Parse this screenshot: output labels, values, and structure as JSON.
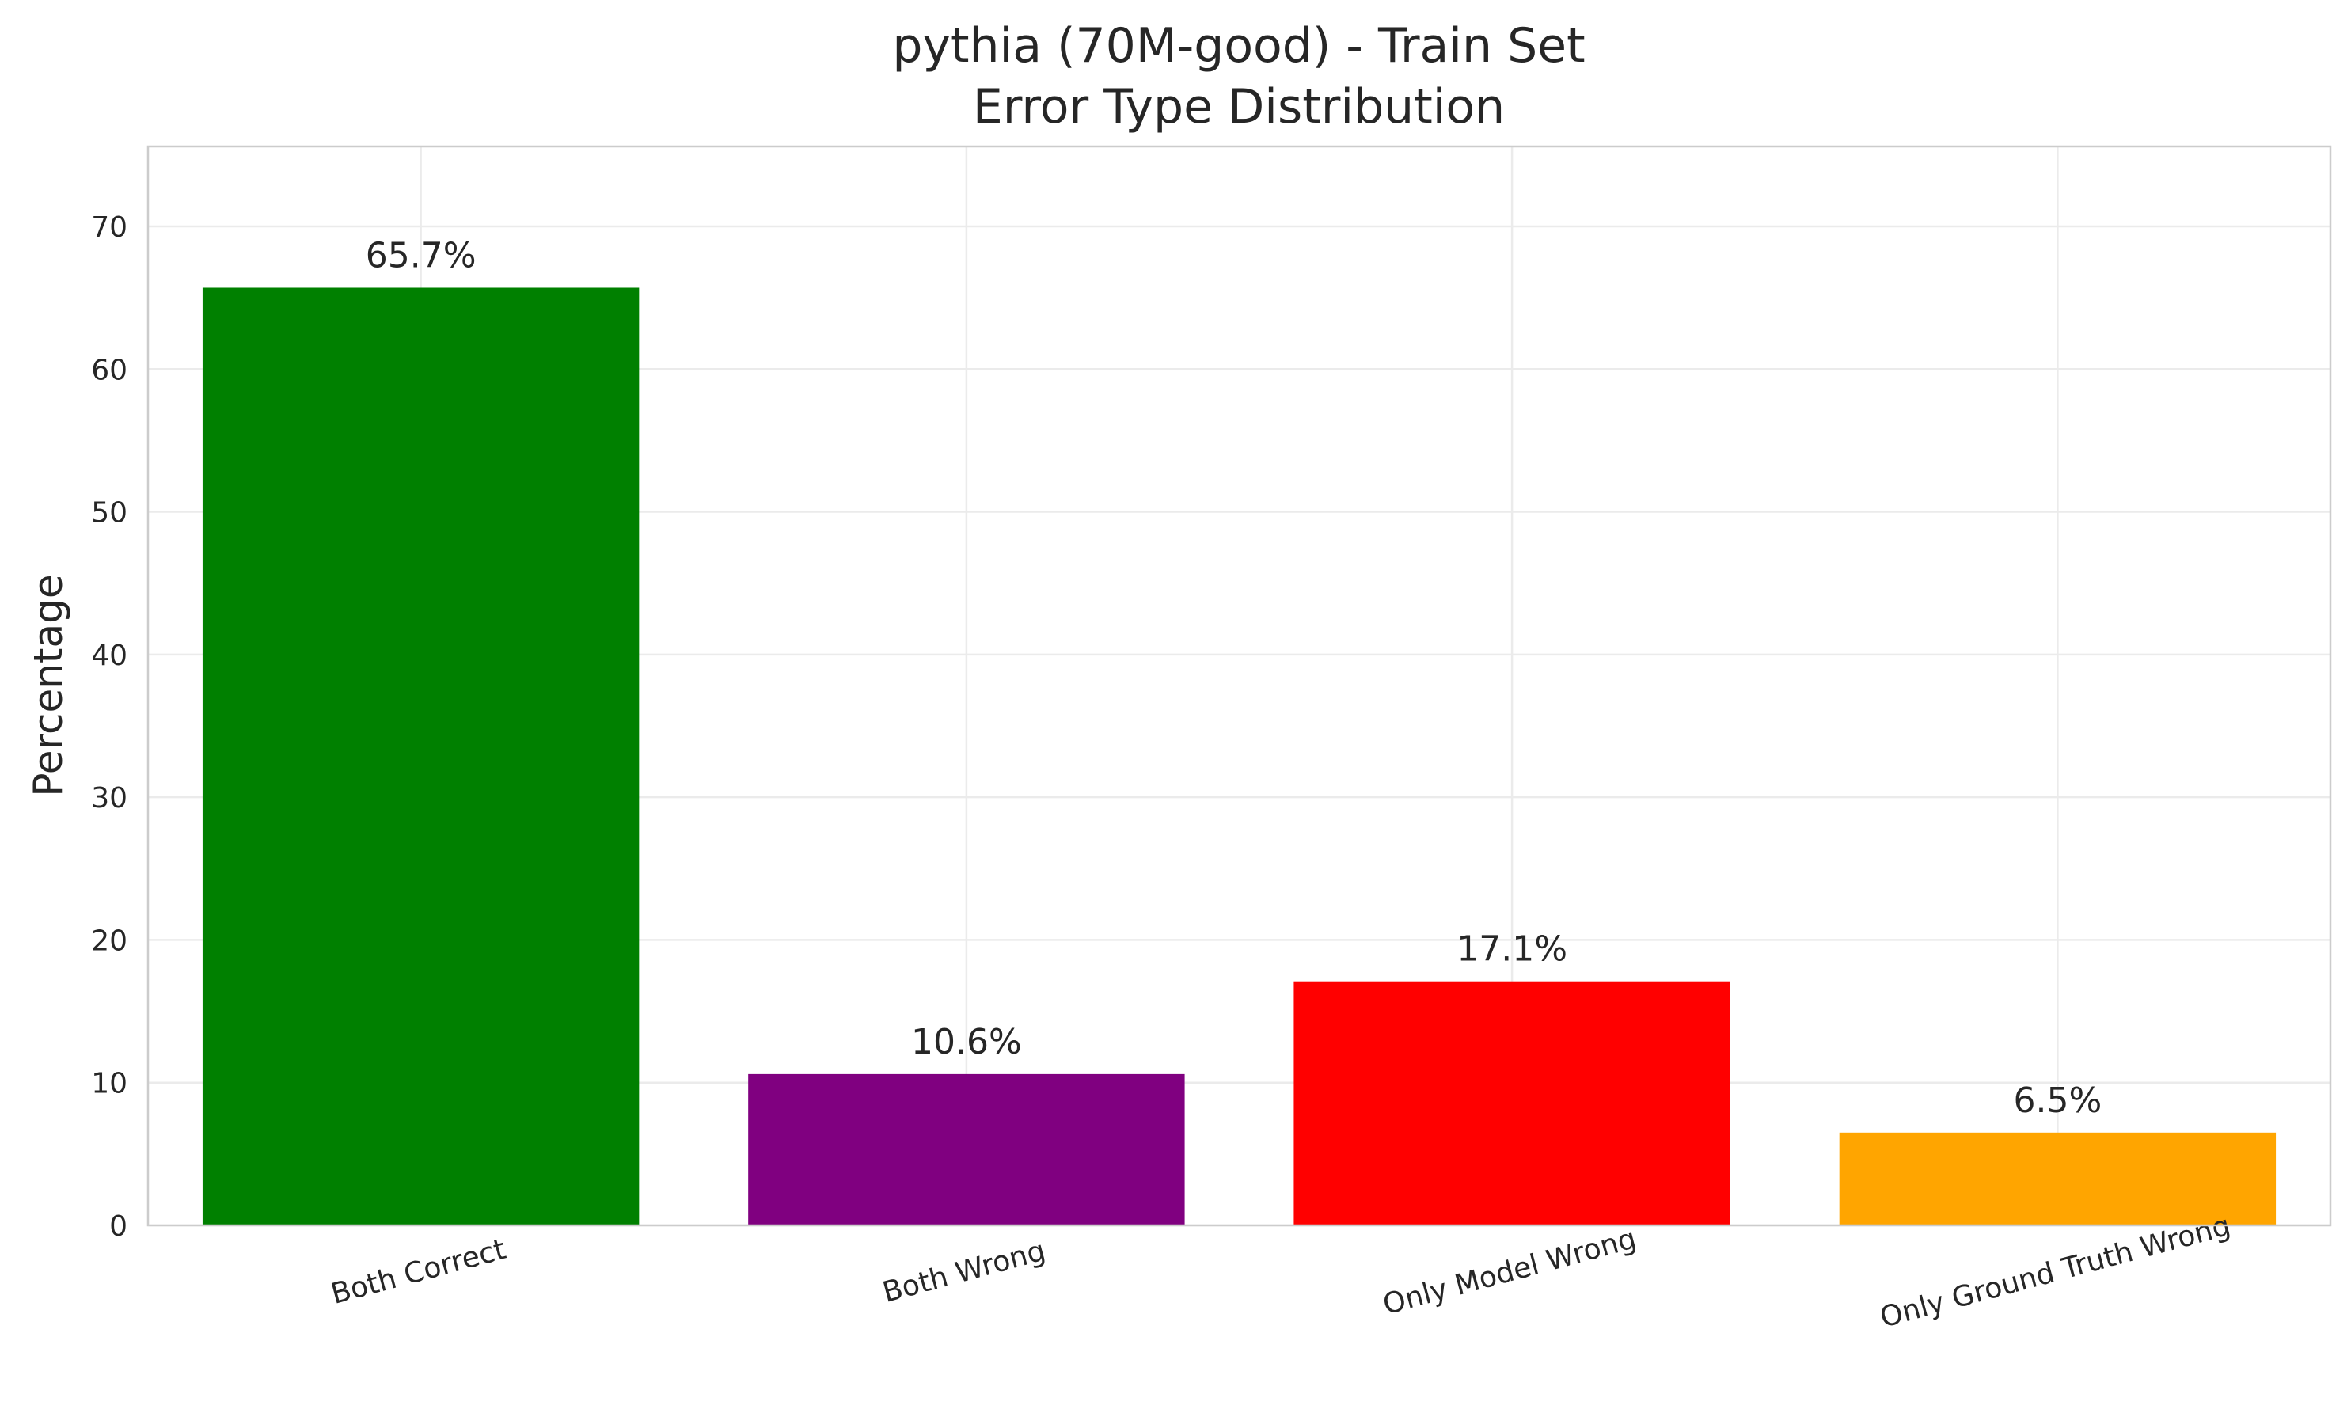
{
  "chart_data": {
    "type": "bar",
    "title_lines": [
      "pythia (70M-good) - Train Set",
      "Error Type Distribution"
    ],
    "xlabel": "",
    "ylabel": "Percentage",
    "categories": [
      "Both Correct",
      "Both Wrong",
      "Only Model Wrong",
      "Only Ground Truth Wrong"
    ],
    "values": [
      65.7,
      10.6,
      17.1,
      6.5
    ],
    "value_labels": [
      "65.7%",
      "10.6%",
      "17.1%",
      "6.5%"
    ],
    "colors": [
      "#008000",
      "#800080",
      "#ff0000",
      "#ffa500"
    ],
    "ylim": [
      0,
      75.6
    ],
    "yticks": [
      0,
      10,
      20,
      30,
      40,
      50,
      60,
      70
    ],
    "grid": true,
    "legend": "none"
  }
}
